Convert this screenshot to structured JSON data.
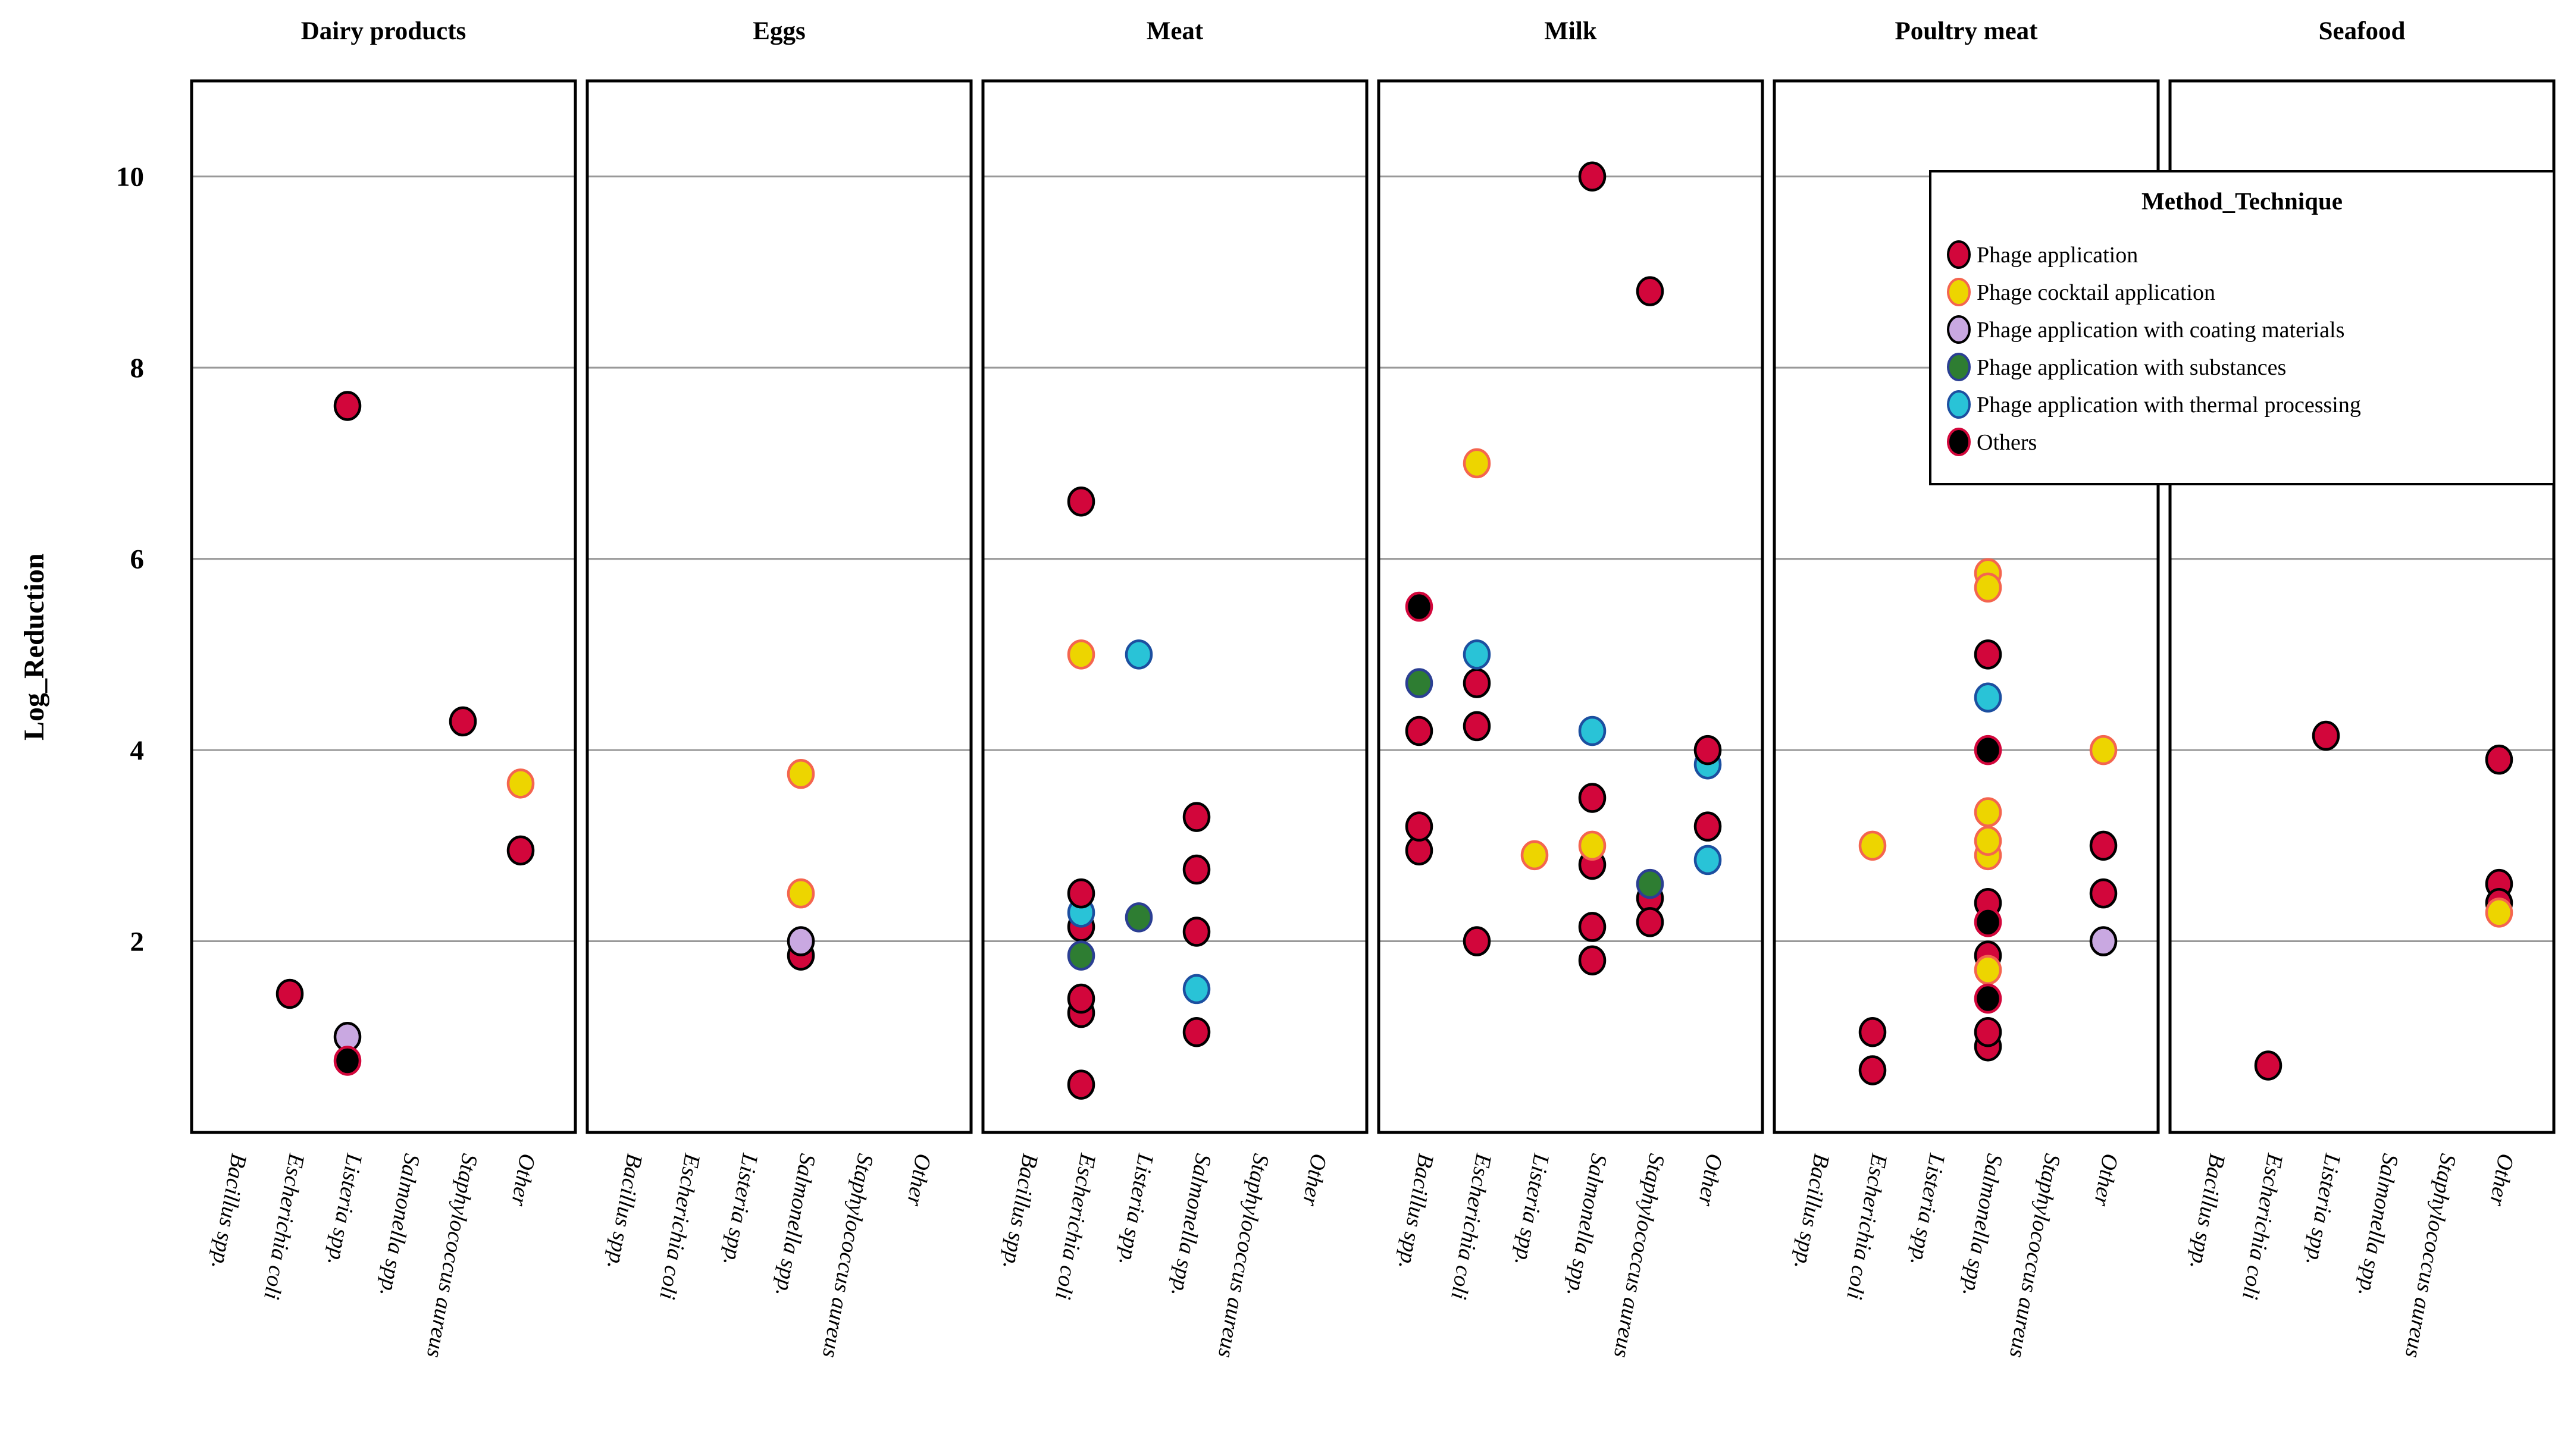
{
  "chart_data": {
    "type": "scatter",
    "subtype": "faceted-categorical-scatter",
    "ylabel": "Log_Reduction",
    "ylim": [
      0,
      11
    ],
    "yticks": [
      2,
      4,
      6,
      8,
      10
    ],
    "grid": "horizontal",
    "categories": [
      "Bacillus spp.",
      "Escherichia coli",
      "Listeria spp.",
      "Salmonella spp.",
      "Staphylococcus aureus",
      "Other"
    ],
    "methods": {
      "PA": {
        "label": "Phage application",
        "fill": "#D2063B",
        "stroke": "#000000"
      },
      "PC": {
        "label": "Phage cocktail application",
        "fill": "#EDD500",
        "stroke": "#F4654F"
      },
      "CM": {
        "label": "Phage application with coating materials",
        "fill": "#C9A8E1",
        "stroke": "#000000"
      },
      "SU": {
        "label": "Phage application with substances",
        "fill": "#2E7D32",
        "stroke": "#2B3F93"
      },
      "TH": {
        "label": "Phage application with thermal processing",
        "fill": "#29C3D7",
        "stroke": "#1C4FA0"
      },
      "OT": {
        "label": "Others",
        "fill": "#000000",
        "stroke": "#D2063B"
      }
    },
    "legend": {
      "title": "Method_Technique",
      "position": "top-right",
      "items": [
        "PA",
        "PC",
        "CM",
        "SU",
        "TH",
        "OT"
      ]
    },
    "palette": {
      "gridline": "#999999",
      "panel_border": "#000000",
      "background": "#ffffff"
    },
    "facets": [
      {
        "title": "Dairy products",
        "points": [
          {
            "category": 1,
            "method": "PA",
            "value": 1.45
          },
          {
            "category": 2,
            "method": "PA",
            "value": 7.6
          },
          {
            "category": 2,
            "method": "CM",
            "value": 1.0
          },
          {
            "category": 2,
            "method": "OT",
            "value": 0.75
          },
          {
            "category": 4,
            "method": "PA",
            "value": 4.3
          },
          {
            "category": 5,
            "method": "PC",
            "value": 3.65
          },
          {
            "category": 5,
            "method": "PA",
            "value": 2.95
          }
        ]
      },
      {
        "title": "Eggs",
        "points": [
          {
            "category": 3,
            "method": "PC",
            "value": 3.75
          },
          {
            "category": 3,
            "method": "PC",
            "value": 2.5
          },
          {
            "category": 3,
            "method": "PA",
            "value": 1.85
          },
          {
            "category": 3,
            "method": "CM",
            "value": 2.0
          }
        ]
      },
      {
        "title": "Meat",
        "points": [
          {
            "category": 1,
            "method": "PA",
            "value": 6.6
          },
          {
            "category": 1,
            "method": "PC",
            "value": 5.0
          },
          {
            "category": 2,
            "method": "TH",
            "value": 5.0
          },
          {
            "category": 1,
            "method": "PA",
            "value": 2.15
          },
          {
            "category": 1,
            "method": "TH",
            "value": 2.3
          },
          {
            "category": 1,
            "method": "PA",
            "value": 2.5
          },
          {
            "category": 1,
            "method": "SU",
            "value": 1.85
          },
          {
            "category": 1,
            "method": "PA",
            "value": 1.25
          },
          {
            "category": 1,
            "method": "PA",
            "value": 1.4
          },
          {
            "category": 1,
            "method": "PA",
            "value": 0.5
          },
          {
            "category": 2,
            "method": "SU",
            "value": 2.25
          },
          {
            "category": 3,
            "method": "PA",
            "value": 3.3
          },
          {
            "category": 3,
            "method": "PA",
            "value": 2.75
          },
          {
            "category": 3,
            "method": "PA",
            "value": 2.1
          },
          {
            "category": 3,
            "method": "TH",
            "value": 1.5
          },
          {
            "category": 3,
            "method": "PA",
            "value": 1.05
          }
        ]
      },
      {
        "title": "Milk",
        "points": [
          {
            "category": 0,
            "method": "OT",
            "value": 5.5
          },
          {
            "category": 0,
            "method": "SU",
            "value": 4.7
          },
          {
            "category": 0,
            "method": "PA",
            "value": 4.2
          },
          {
            "category": 0,
            "method": "PA",
            "value": 2.95
          },
          {
            "category": 0,
            "method": "PA",
            "value": 3.2
          },
          {
            "category": 1,
            "method": "PC",
            "value": 7.0
          },
          {
            "category": 1,
            "method": "PA",
            "value": 4.7
          },
          {
            "category": 1,
            "method": "TH",
            "value": 5.0
          },
          {
            "category": 1,
            "method": "PA",
            "value": 4.25
          },
          {
            "category": 1,
            "method": "PA",
            "value": 2.0
          },
          {
            "category": 2,
            "method": "PC",
            "value": 2.9
          },
          {
            "category": 3,
            "method": "PA",
            "value": 10.0
          },
          {
            "category": 3,
            "method": "TH",
            "value": 4.2
          },
          {
            "category": 3,
            "method": "PA",
            "value": 3.5
          },
          {
            "category": 3,
            "method": "PA",
            "value": 2.8
          },
          {
            "category": 3,
            "method": "PC",
            "value": 3.0
          },
          {
            "category": 3,
            "method": "PA",
            "value": 2.15
          },
          {
            "category": 3,
            "method": "PA",
            "value": 1.8
          },
          {
            "category": 4,
            "method": "PA",
            "value": 8.8
          },
          {
            "category": 4,
            "method": "PA",
            "value": 2.45
          },
          {
            "category": 4,
            "method": "SU",
            "value": 2.6
          },
          {
            "category": 4,
            "method": "PA",
            "value": 2.2
          },
          {
            "category": 5,
            "method": "TH",
            "value": 3.85
          },
          {
            "category": 5,
            "method": "PA",
            "value": 4.0
          },
          {
            "category": 5,
            "method": "PA",
            "value": 3.2
          },
          {
            "category": 5,
            "method": "TH",
            "value": 2.85
          }
        ]
      },
      {
        "title": "Poultry meat",
        "points": [
          {
            "category": 1,
            "method": "PC",
            "value": 3.0
          },
          {
            "category": 1,
            "method": "PA",
            "value": 1.05
          },
          {
            "category": 1,
            "method": "PA",
            "value": 0.65
          },
          {
            "category": 3,
            "method": "PC",
            "value": 5.85
          },
          {
            "category": 3,
            "method": "PC",
            "value": 5.7
          },
          {
            "category": 3,
            "method": "PA",
            "value": 5.0
          },
          {
            "category": 3,
            "method": "TH",
            "value": 4.55
          },
          {
            "category": 3,
            "method": "OT",
            "value": 4.0
          },
          {
            "category": 3,
            "method": "PC",
            "value": 3.35
          },
          {
            "category": 3,
            "method": "PC",
            "value": 2.9
          },
          {
            "category": 3,
            "method": "PC",
            "value": 3.05
          },
          {
            "category": 3,
            "method": "PA",
            "value": 2.4
          },
          {
            "category": 3,
            "method": "OT",
            "value": 2.2
          },
          {
            "category": 3,
            "method": "PA",
            "value": 1.85
          },
          {
            "category": 3,
            "method": "PC",
            "value": 1.7
          },
          {
            "category": 3,
            "method": "OT",
            "value": 1.4
          },
          {
            "category": 3,
            "method": "PA",
            "value": 0.9
          },
          {
            "category": 3,
            "method": "PA",
            "value": 1.05
          },
          {
            "category": 5,
            "method": "PC",
            "value": 4.0
          },
          {
            "category": 5,
            "method": "PA",
            "value": 3.0
          },
          {
            "category": 5,
            "method": "PA",
            "value": 2.5
          },
          {
            "category": 5,
            "method": "CM",
            "value": 2.0
          }
        ]
      },
      {
        "title": "Seafood",
        "points": [
          {
            "category": 1,
            "method": "PA",
            "value": 0.7
          },
          {
            "category": 2,
            "method": "PA",
            "value": 4.15
          },
          {
            "category": 5,
            "method": "PA",
            "value": 3.9
          },
          {
            "category": 5,
            "method": "PA",
            "value": 2.6
          },
          {
            "category": 5,
            "method": "PA",
            "value": 2.4
          },
          {
            "category": 5,
            "method": "PC",
            "value": 2.3
          }
        ]
      }
    ]
  }
}
